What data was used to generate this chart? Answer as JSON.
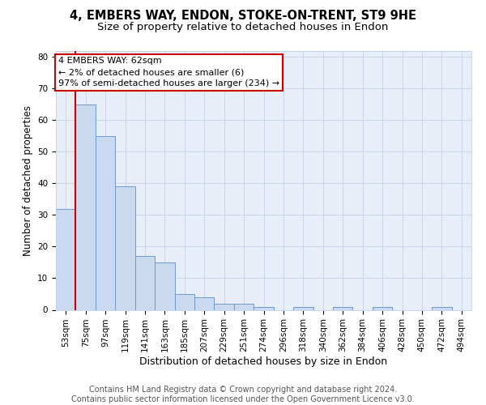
{
  "title1": "4, EMBERS WAY, ENDON, STOKE-ON-TRENT, ST9 9HE",
  "title2": "Size of property relative to detached houses in Endon",
  "xlabel": "Distribution of detached houses by size in Endon",
  "ylabel": "Number of detached properties",
  "categories": [
    "53sqm",
    "75sqm",
    "97sqm",
    "119sqm",
    "141sqm",
    "163sqm",
    "185sqm",
    "207sqm",
    "229sqm",
    "251sqm",
    "274sqm",
    "296sqm",
    "318sqm",
    "340sqm",
    "362sqm",
    "384sqm",
    "406sqm",
    "428sqm",
    "450sqm",
    "472sqm",
    "494sqm"
  ],
  "values": [
    32,
    65,
    55,
    39,
    17,
    15,
    5,
    4,
    2,
    2,
    1,
    0,
    1,
    0,
    1,
    0,
    1,
    0,
    0,
    1,
    0
  ],
  "bar_color": "#c9d9f0",
  "bar_edge_color": "#7098c8",
  "annotation_line1": "4 EMBERS WAY: 62sqm",
  "annotation_line2": "← 2% of detached houses are smaller (6)",
  "annotation_line3": "97% of semi-detached houses are larger (234) →",
  "ylim": [
    0,
    82
  ],
  "yticks": [
    0,
    10,
    20,
    30,
    40,
    50,
    60,
    70,
    80
  ],
  "grid_color": "#c8d4e8",
  "bg_color": "#e8eef8",
  "footer1": "Contains HM Land Registry data © Crown copyright and database right 2024.",
  "footer2": "Contains public sector information licensed under the Open Government Licence v3.0.",
  "red_color": "#cc0000",
  "box_facecolor": "#ffffff",
  "box_edgecolor": "#cc0000",
  "title1_fontsize": 10.5,
  "title2_fontsize": 9.5,
  "xlabel_fontsize": 9,
  "ylabel_fontsize": 8.5,
  "tick_fontsize": 7.5,
  "ann_fontsize": 8,
  "footer_fontsize": 7
}
